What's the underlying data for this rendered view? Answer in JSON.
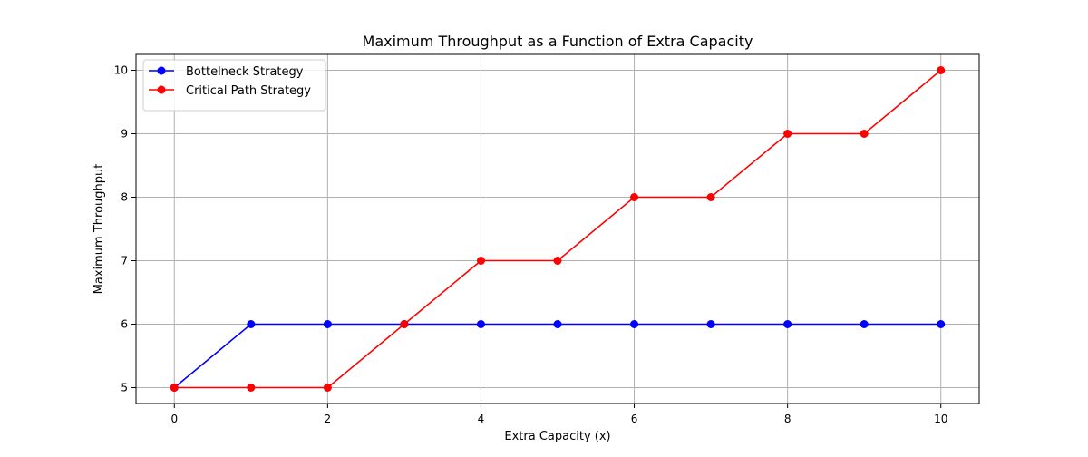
{
  "chart_data": {
    "type": "line",
    "title": "Maximum Throughput as a Function of Extra Capacity",
    "xlabel": "Extra Capacity (x)",
    "ylabel": "Maximum Throughput",
    "x": [
      0,
      1,
      2,
      3,
      4,
      5,
      6,
      7,
      8,
      9,
      10
    ],
    "xlim": [
      -0.5,
      10.5
    ],
    "ylim": [
      4.75,
      10.25
    ],
    "xticks": [
      0,
      2,
      4,
      6,
      8,
      10
    ],
    "yticks": [
      5,
      6,
      7,
      8,
      9,
      10
    ],
    "grid": true,
    "legend_position": "top-left",
    "series": [
      {
        "name": "Bottelneck Strategy",
        "color": "#0000ff",
        "marker": "circle",
        "values": [
          5,
          6,
          6,
          6,
          6,
          6,
          6,
          6,
          6,
          6,
          6
        ]
      },
      {
        "name": "Critical Path Strategy",
        "color": "#ff0000",
        "marker": "circle",
        "values": [
          5,
          5,
          5,
          6,
          7,
          7,
          8,
          8,
          9,
          9,
          10
        ]
      }
    ]
  }
}
